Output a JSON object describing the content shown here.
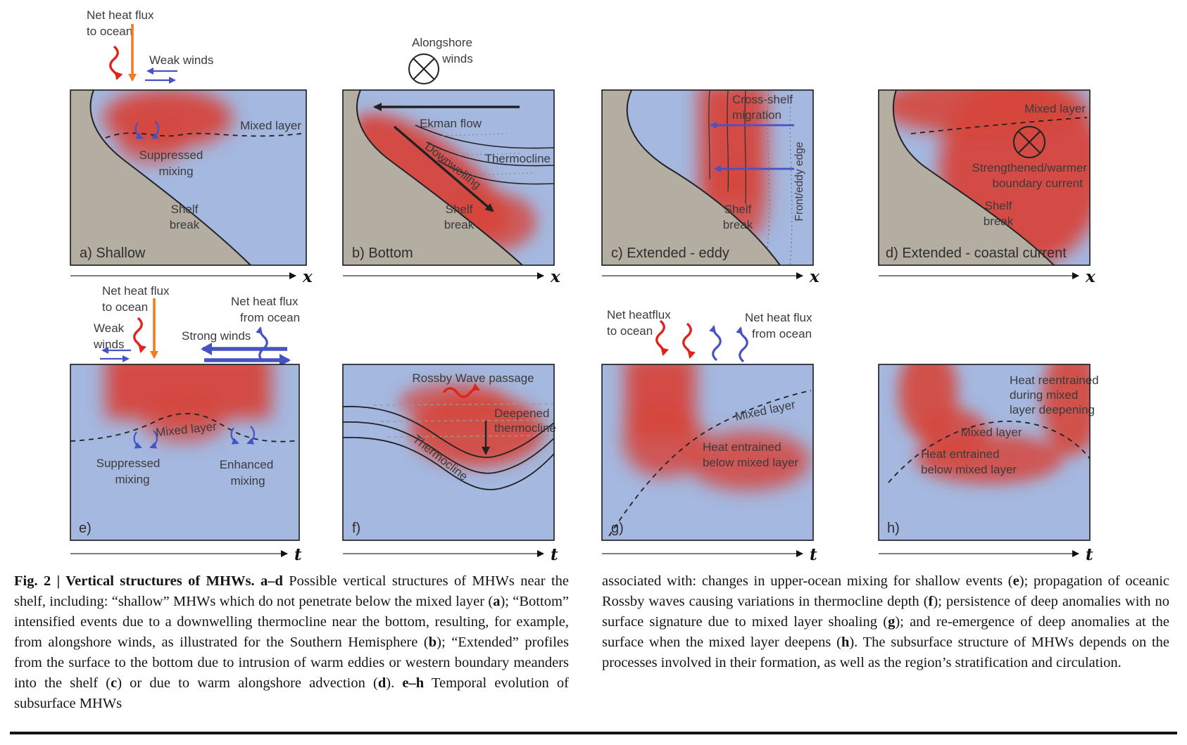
{
  "figure_title": "Fig. 2 | Vertical structures of MHWs.",
  "colors": {
    "ocean": "#a4b8e0",
    "land": "#b3ada2",
    "anomaly_red": "#d6453c",
    "heat_flux_orange": "#f07d21",
    "warm_wavy_red": "#e0231d",
    "wind_blue": "#4553c4",
    "line_dark": "#222222"
  },
  "panels": {
    "a": {
      "heat_flux_line1": "Net heat flux",
      "heat_flux_line2": "to ocean",
      "weak_winds": "Weak winds",
      "mixed_layer": "Mixed layer",
      "suppressed_line1": "Suppressed",
      "suppressed_line2": "mixing",
      "shelf_line1": "Shelf",
      "shelf_line2": "break",
      "label": "a) Shallow",
      "axis": "x"
    },
    "b": {
      "alongshore_line1": "Alongshore",
      "alongshore_line2": "winds",
      "ekman": "Ekman flow",
      "thermocline": "Thermocline",
      "downwelling": "Downwelling",
      "shelf_line1": "Shelf",
      "shelf_line2": "break",
      "label": "b) Bottom",
      "axis": "x"
    },
    "c": {
      "cross_line1": "Cross-shelf",
      "cross_line2": "migration",
      "front_eddy": "Front/eddy edge",
      "shelf_line1": "Shelf",
      "shelf_line2": "break",
      "label": "c) Extended - eddy",
      "axis": "x"
    },
    "d": {
      "mixed_layer": "Mixed layer",
      "strengthened_line1": "Strengthened/warmer",
      "strengthened_line2": "boundary current",
      "shelf_line1": "Shelf",
      "shelf_line2": "break",
      "label": "d) Extended - coastal current",
      "axis": "x"
    },
    "e": {
      "heat_to_line1": "Net heat flux",
      "heat_to_line2": "to ocean",
      "weak_line1": "Weak",
      "weak_line2": "winds",
      "strong_winds": "Strong winds",
      "heat_from_line1": "Net heat flux",
      "heat_from_line2": "from ocean",
      "mixed_layer": "Mixed layer",
      "suppressed_line1": "Suppressed",
      "suppressed_line2": "mixing",
      "enhanced_line1": "Enhanced",
      "enhanced_line2": "mixing",
      "label": "e)",
      "axis": "t"
    },
    "f": {
      "rossby": "Rossby Wave passage",
      "deepened_line1": "Deepened",
      "deepened_line2": "thermocline",
      "thermocline": "Thermocline",
      "label": "f)",
      "axis": "t"
    },
    "g": {
      "heat_to_line1": "Net heatflux",
      "heat_to_line2": "to ocean",
      "heat_from_line1": "Net heat flux",
      "heat_from_line2": "from ocean",
      "mixed_layer": "Mixed layer",
      "entrained_line1": "Heat entrained",
      "entrained_line2": "below mixed layer",
      "label": "g)",
      "axis": "t"
    },
    "h": {
      "reentrained_line1": "Heat reentrained",
      "reentrained_line2": "during mixed",
      "reentrained_line3": "layer deepening",
      "mixed_layer": "Mixed layer",
      "entrained_line1": "Heat entrained",
      "entrained_line2": "below mixed layer",
      "label": "h)",
      "axis": "t"
    }
  },
  "caption": {
    "left": [
      {
        "text": "Fig. 2 | Vertical structures of MHWs. a–d ",
        "bold": true
      },
      {
        "text": "Possible vertical structures of MHWs near the shelf, including: “shallow” MHWs which do not penetrate below the mixed layer (",
        "bold": false
      },
      {
        "text": "a",
        "bold": true
      },
      {
        "text": "); “Bottom” intensified events due to a downwelling thermocline near the bottom, resulting, for example, from alongshore winds, as illustrated for the Southern Hemisphere (",
        "bold": false
      },
      {
        "text": "b",
        "bold": true
      },
      {
        "text": "); “Extended” profiles from the surface to the bottom due to intrusion of warm eddies or western boundary meanders into the shelf (",
        "bold": false
      },
      {
        "text": "c",
        "bold": true
      },
      {
        "text": ") or due to warm alongshore advection (",
        "bold": false
      },
      {
        "text": "d",
        "bold": true
      },
      {
        "text": "). ",
        "bold": false
      },
      {
        "text": "e–h",
        "bold": true
      },
      {
        "text": " Temporal evolution of subsurface MHWs",
        "bold": false
      }
    ],
    "right": [
      {
        "text": "associated with: changes in upper-ocean mixing for shallow events (",
        "bold": false
      },
      {
        "text": "e",
        "bold": true
      },
      {
        "text": "); propagation of oceanic Rossby waves causing variations in thermocline depth (",
        "bold": false
      },
      {
        "text": "f",
        "bold": true
      },
      {
        "text": "); persistence of deep anomalies with no surface signature due to mixed layer shoaling (",
        "bold": false
      },
      {
        "text": "g",
        "bold": true
      },
      {
        "text": "); and re-emergence of deep anomalies at the surface when the mixed layer deepens (",
        "bold": false
      },
      {
        "text": "h",
        "bold": true
      },
      {
        "text": "). The subsurface structure of MHWs depends on the processes involved in their formation, as well as the region’s stratification and circulation.",
        "bold": false
      }
    ]
  }
}
